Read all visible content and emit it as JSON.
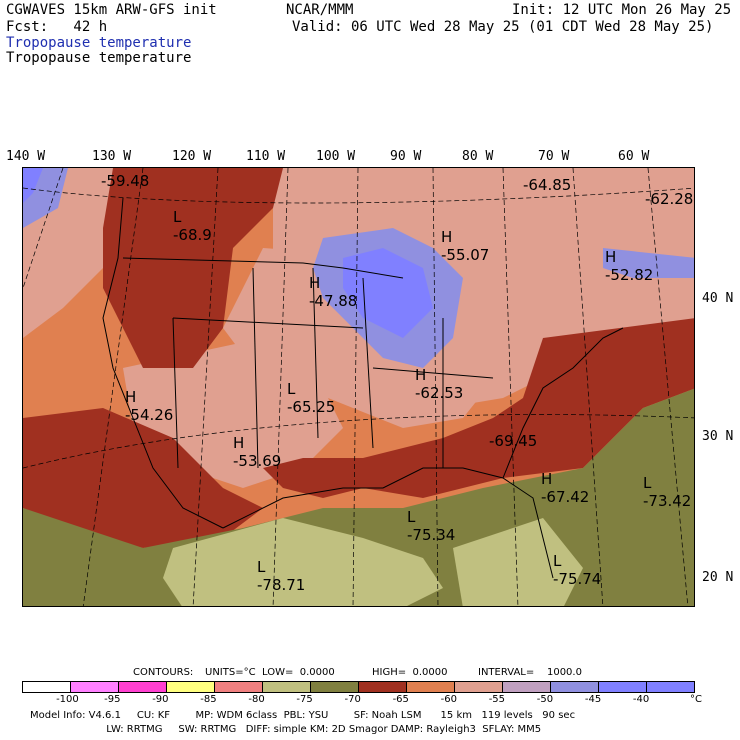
{
  "header": {
    "model_line": "CGWAVES 15km ARW-GFS init",
    "fcst_line": "Fcst:   42 h",
    "org": "NCAR/MMM",
    "init": "Init: 12 UTC Mon 26 May 25",
    "valid": "Valid: 06 UTC Wed 28 May 25 (01 CDT Wed 28 May 25)",
    "field_title_blue": "Tropopause temperature",
    "field_title_black": "Tropopause temperature"
  },
  "longitude_ticks": [
    "140 W",
    "130 W",
    "120 W",
    "110 W",
    "100 W",
    "90 W",
    "80 W",
    "70 W",
    "60 W"
  ],
  "latitude_ticks": [
    "40 N",
    "30 N",
    "20 N"
  ],
  "pressure_labels": [
    {
      "type": "",
      "value": "-59.48"
    },
    {
      "type": "L",
      "value": "-68.9"
    },
    {
      "type": "H",
      "value": "-55.07"
    },
    {
      "type": "",
      "value": "-64.85"
    },
    {
      "type": "",
      "value": "-62.28"
    },
    {
      "type": "H",
      "value": "-52.82"
    },
    {
      "type": "H",
      "value": "-47.88"
    },
    {
      "type": "H",
      "value": "-54.26"
    },
    {
      "type": "L",
      "value": "-65.25"
    },
    {
      "type": "H",
      "value": "-62.53"
    },
    {
      "type": "H",
      "value": "-53.69"
    },
    {
      "type": "",
      "value": "-69.45"
    },
    {
      "type": "H",
      "value": "-67.42"
    },
    {
      "type": "L",
      "value": "-73.42"
    },
    {
      "type": "L",
      "value": "-75.34"
    },
    {
      "type": "L",
      "value": "-78.71"
    },
    {
      "type": "L",
      "value": "-75.74"
    }
  ],
  "contour_info": {
    "contours": "CONTOURS:",
    "units": "UNITS=°C",
    "low": "LOW=  0.0000",
    "high": "HIGH=  0.0000",
    "interval": "INTERVAL=    1000.0"
  },
  "colorbar": {
    "colors": [
      "#ffffff",
      "#ff80ff",
      "#ff40d0",
      "#ffff80",
      "#f08080",
      "#c0c080",
      "#808040",
      "#a03020",
      "#e08050",
      "#e0a090",
      "#c0a0c0",
      "#9090e0",
      "#8080ff",
      "#8080ff"
    ],
    "labels": [
      "-100",
      "-95",
      "-90",
      "-85",
      "-80",
      "-75",
      "-70",
      "-65",
      "-60",
      "-55",
      "-50",
      "-45",
      "-40"
    ],
    "unit": "°C"
  },
  "footer": {
    "line1": "Model Info: V4.6.1     CU: KF        MP: WDM 6class  PBL: YSU        SF: Noah LSM      15 km   119 levels   90 sec",
    "line2": "                        LW: RRTMG     SW: RRTMG   DIFF: simple KM: 2D Smagor DAMP: Rayleigh3  SFLAY: MM5"
  }
}
